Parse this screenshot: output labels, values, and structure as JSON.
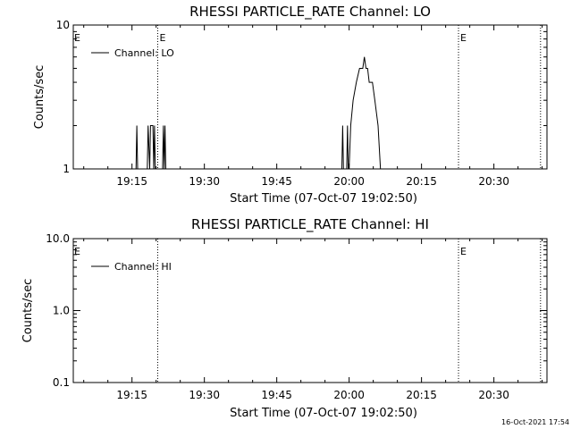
{
  "chart_data": [
    {
      "type": "line",
      "title": "RHESSI PARTICLE_RATE Channel: LO",
      "xlabel": "Start Time (07-Oct-07 19:02:50)",
      "ylabel": "Counts/sec",
      "xlim": [
        "19:02:50",
        "20:41:00"
      ],
      "ylim": [
        1,
        10
      ],
      "yscale": "log",
      "x_tick_labels": [
        "19:15",
        "19:30",
        "19:45",
        "20:00",
        "20:15",
        "20:30"
      ],
      "y_tick_labels": [
        "10",
        "1"
      ],
      "legend": {
        "entries": [
          "Channel: LO"
        ],
        "placement": "top-left"
      },
      "event_markers": [
        {
          "time": "19:20:20",
          "label": "E",
          "style": "dotted"
        },
        {
          "time": "20:22:40",
          "label": "E",
          "style": "dotted"
        },
        {
          "time": "20:39:40",
          "label": "",
          "style": "dotted"
        }
      ],
      "edge_labels": [
        "E"
      ],
      "series": [
        {
          "name": "Channel: LO",
          "points": [
            [
              "19:15:50",
              1
            ],
            [
              "19:16:00",
              2
            ],
            [
              "19:16:10",
              1
            ],
            [
              "19:18:10",
              1
            ],
            [
              "19:18:20",
              2
            ],
            [
              "19:18:40",
              1
            ],
            [
              "19:18:50",
              2
            ],
            [
              "19:19:20",
              2
            ],
            [
              "19:19:30",
              1
            ],
            [
              "19:19:40",
              2
            ],
            [
              "19:19:50",
              1
            ],
            [
              "19:21:20",
              1
            ],
            [
              "19:21:30",
              2
            ],
            [
              "19:21:40",
              1
            ],
            [
              "19:21:50",
              2
            ],
            [
              "19:22:00",
              1
            ],
            [
              "19:58:30",
              1
            ],
            [
              "19:58:40",
              2
            ],
            [
              "19:58:50",
              1
            ],
            [
              "19:59:30",
              1
            ],
            [
              "19:59:40",
              2
            ],
            [
              "19:59:50",
              1
            ],
            [
              "20:00:00",
              1
            ],
            [
              "20:00:20",
              2
            ],
            [
              "20:00:50",
              3
            ],
            [
              "20:01:30",
              4
            ],
            [
              "20:02:10",
              5
            ],
            [
              "20:02:50",
              5
            ],
            [
              "20:03:10",
              6
            ],
            [
              "20:03:30",
              5
            ],
            [
              "20:03:50",
              5
            ],
            [
              "20:04:10",
              4
            ],
            [
              "20:04:50",
              4
            ],
            [
              "20:05:20",
              3
            ],
            [
              "20:06:00",
              2
            ],
            [
              "20:06:30",
              1
            ]
          ]
        }
      ]
    },
    {
      "type": "line",
      "title": "RHESSI PARTICLE_RATE Channel: HI",
      "xlabel": "Start Time (07-Oct-07 19:02:50)",
      "ylabel": "Counts/sec",
      "xlim": [
        "19:02:50",
        "20:41:00"
      ],
      "ylim": [
        0.1,
        10.0
      ],
      "yscale": "log",
      "x_tick_labels": [
        "19:15",
        "19:30",
        "19:45",
        "20:00",
        "20:15",
        "20:30"
      ],
      "y_tick_labels": [
        "10.0",
        "1.0",
        "0.1"
      ],
      "legend": {
        "entries": [
          "Channel: HI"
        ],
        "placement": "top-left"
      },
      "event_markers": [
        {
          "time": "19:20:20",
          "label": "",
          "style": "dotted"
        },
        {
          "time": "20:22:40",
          "label": "E",
          "style": "dotted"
        },
        {
          "time": "20:39:40",
          "label": "",
          "style": "dotted"
        }
      ],
      "edge_labels": [
        "E"
      ],
      "series": [
        {
          "name": "Channel: HI",
          "points": []
        }
      ]
    }
  ],
  "footer": {
    "timestamp": "16-Oct-2021 17:54"
  }
}
